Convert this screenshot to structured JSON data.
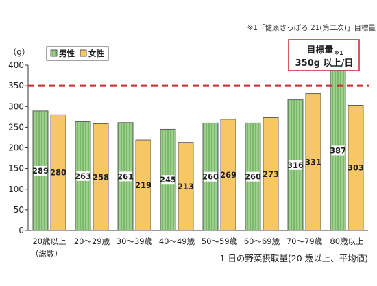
{
  "chart_data": {
    "type": "bar",
    "title": "",
    "source_note": "※1「健康さっぽろ 21(第二次)」目標量",
    "y_unit": "（g）",
    "xlabel": "1 日の野菜摂取量(20 歳以上、平均値)",
    "ylabel": "",
    "ylim": [
      0,
      400
    ],
    "yticks": [
      0,
      50,
      100,
      150,
      200,
      250,
      300,
      350,
      400
    ],
    "grid": false,
    "legend_position": "top-left",
    "categories": [
      "20歳以上",
      "20～29歳",
      "30～39歳",
      "40～49歳",
      "50～59歳",
      "60～69歳",
      "70～79歳",
      "80歳以上"
    ],
    "category_sublabels": [
      "（総数）",
      "",
      "",
      "",
      "",
      "",
      "",
      ""
    ],
    "series": [
      {
        "name": "男性",
        "values": [
          289,
          263,
          261,
          245,
          260,
          260,
          316,
          387
        ],
        "color": "#9fcf8e"
      },
      {
        "name": "女性",
        "values": [
          280,
          258,
          219,
          213,
          269,
          273,
          331,
          303
        ],
        "color": "#f7c766"
      }
    ],
    "target_line": {
      "value": 350,
      "color": "#cc2b2b"
    },
    "target_box": {
      "line1": "目標量",
      "mark": "※1",
      "line2": "350g 以上/日",
      "border_color": "#cc3333"
    }
  }
}
